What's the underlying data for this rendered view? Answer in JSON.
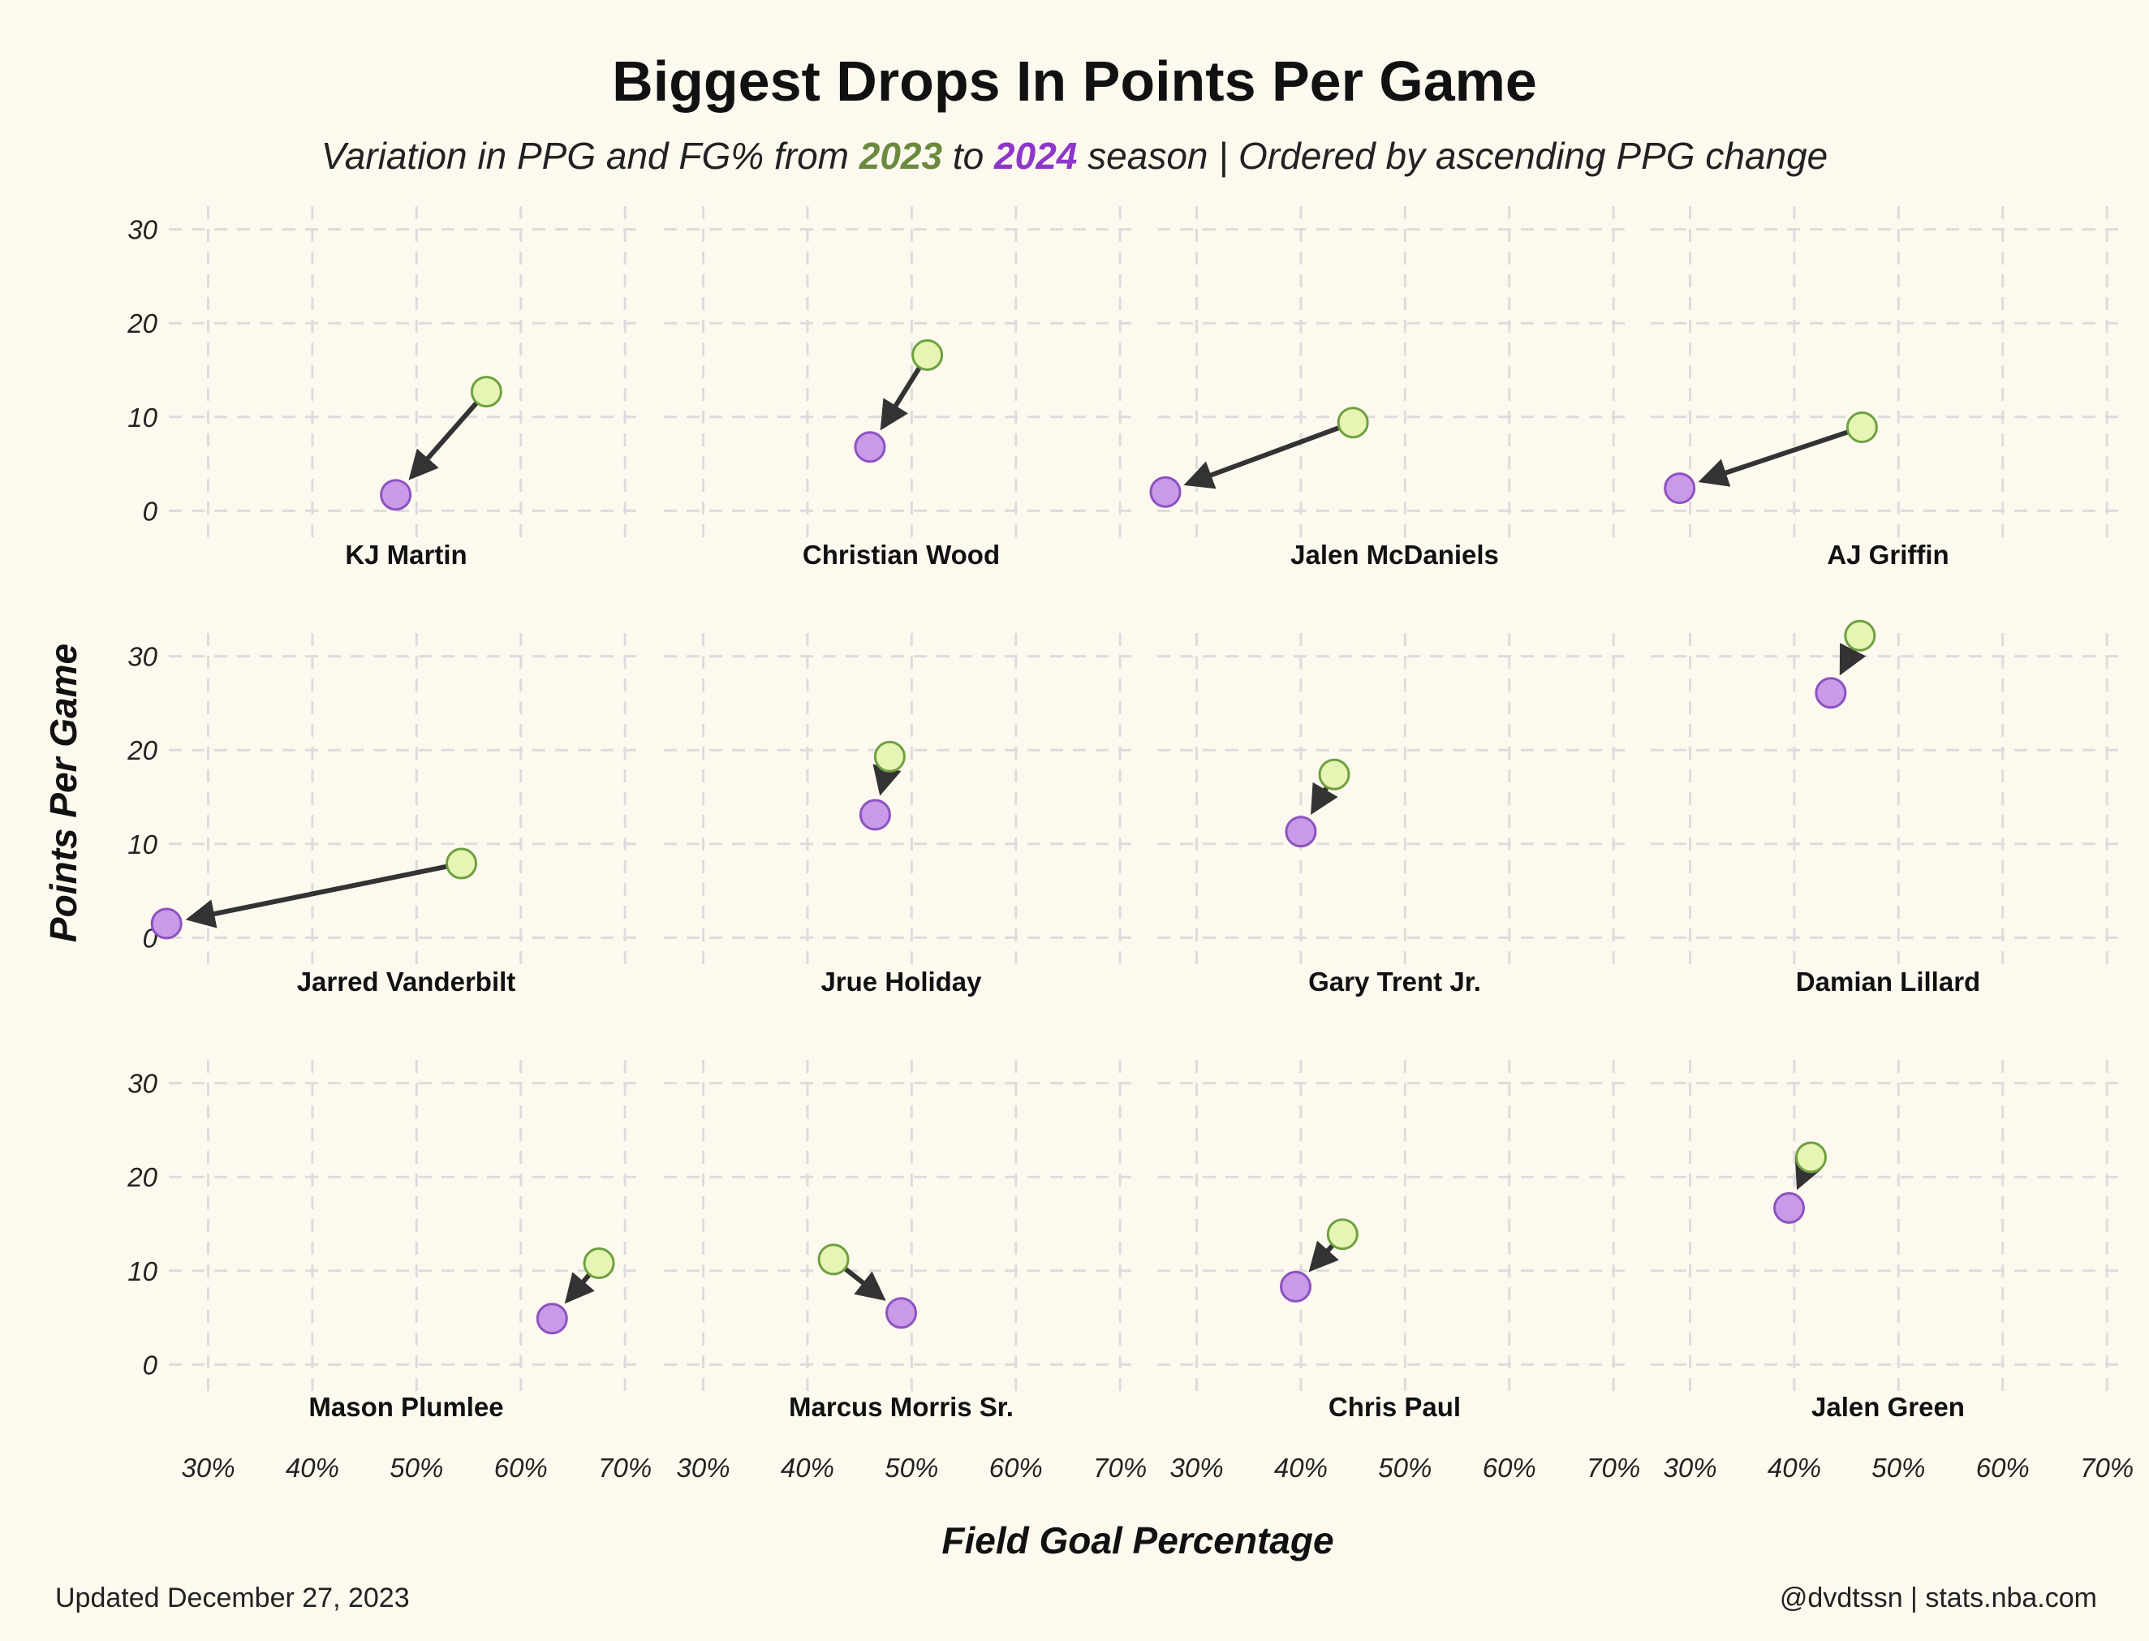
{
  "title": "Biggest Drops In Points Per Game",
  "subtitle": {
    "prefix": "Variation in PPG and FG% from ",
    "year_from": "2023",
    "middle": " to ",
    "year_to": "2024",
    "suffix": " season | Ordered by ascending PPG change"
  },
  "footer": {
    "left": "Updated December 27, 2023",
    "right": "@dvdtssn | stats.nba.com"
  },
  "colors": {
    "background": "#fdf9ef",
    "year_from": "#6b8a3e",
    "year_to": "#8e36c9",
    "point_from_fill": "#e6f5b3",
    "point_from_stroke": "#6fa040",
    "point_to_fill": "#c89ae8",
    "point_to_stroke": "#8e52c0",
    "arrow": "#333333",
    "grid": "#dcdcdc"
  },
  "chart_data": {
    "type": "scatter",
    "xlabel": "Field Goal Percentage",
    "ylabel": "Points Per Game",
    "xlim": [
      0.27,
      0.71
    ],
    "ylim": [
      -3,
      33
    ],
    "x_ticks": [
      "30%",
      "40%",
      "50%",
      "60%",
      "70%"
    ],
    "y_ticks": [
      "0",
      "10",
      "20",
      "30"
    ],
    "grid": true,
    "series": [
      {
        "name": "2023"
      },
      {
        "name": "2024"
      }
    ],
    "players": [
      {
        "name": "KJ Martin",
        "fg_2023": 0.567,
        "ppg_2023": 12.7,
        "fg_2024": 0.48,
        "ppg_2024": 1.7
      },
      {
        "name": "Christian Wood",
        "fg_2023": 0.515,
        "ppg_2023": 16.6,
        "fg_2024": 0.46,
        "ppg_2024": 6.8
      },
      {
        "name": "Jalen McDaniels",
        "fg_2023": 0.45,
        "ppg_2023": 9.4,
        "fg_2024": 0.27,
        "ppg_2024": 2.0
      },
      {
        "name": "AJ Griffin",
        "fg_2023": 0.465,
        "ppg_2023": 8.9,
        "fg_2024": 0.29,
        "ppg_2024": 2.4
      },
      {
        "name": "Jarred Vanderbilt",
        "fg_2023": 0.543,
        "ppg_2023": 7.9,
        "fg_2024": 0.26,
        "ppg_2024": 1.5
      },
      {
        "name": "Jrue Holiday",
        "fg_2023": 0.479,
        "ppg_2023": 19.3,
        "fg_2024": 0.465,
        "ppg_2024": 13.1
      },
      {
        "name": "Gary Trent Jr.",
        "fg_2023": 0.432,
        "ppg_2023": 17.4,
        "fg_2024": 0.4,
        "ppg_2024": 11.3
      },
      {
        "name": "Damian Lillard",
        "fg_2023": 0.463,
        "ppg_2023": 32.2,
        "fg_2024": 0.435,
        "ppg_2024": 26.1
      },
      {
        "name": "Mason Plumlee",
        "fg_2023": 0.675,
        "ppg_2023": 10.8,
        "fg_2024": 0.63,
        "ppg_2024": 4.9
      },
      {
        "name": "Marcus Morris Sr.",
        "fg_2023": 0.425,
        "ppg_2023": 11.2,
        "fg_2024": 0.49,
        "ppg_2024": 5.5
      },
      {
        "name": "Chris Paul",
        "fg_2023": 0.44,
        "ppg_2023": 13.9,
        "fg_2024": 0.395,
        "ppg_2024": 8.3
      },
      {
        "name": "Jalen Green",
        "fg_2023": 0.416,
        "ppg_2023": 22.1,
        "fg_2024": 0.395,
        "ppg_2024": 16.7
      }
    ]
  }
}
